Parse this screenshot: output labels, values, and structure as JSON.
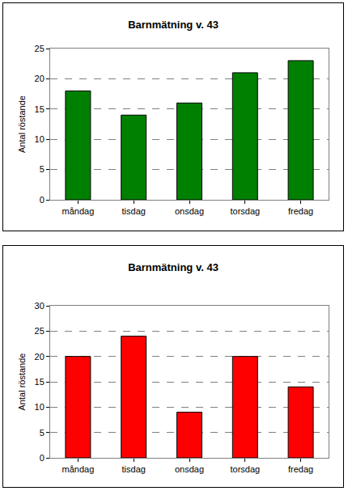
{
  "chart_data": [
    {
      "type": "bar",
      "title": "Barnmätning v. 43",
      "y_label": "Antal röstande",
      "categories": [
        "måndag",
        "tisdag",
        "onsdag",
        "torsdag",
        "fredag"
      ],
      "values": [
        18,
        14,
        16,
        21,
        23
      ],
      "color": "#008000",
      "ylim": [
        0,
        25
      ],
      "yticks": [
        0,
        5,
        10,
        15,
        20,
        25
      ],
      "grid": true
    },
    {
      "type": "bar",
      "title": "Barnmätning v. 43",
      "y_label": "Antal röstande",
      "categories": [
        "måndag",
        "tisdag",
        "onsdag",
        "torsdag",
        "fredag"
      ],
      "values": [
        20,
        24,
        9,
        20,
        14
      ],
      "color": "#ff0000",
      "ylim": [
        0,
        30
      ],
      "yticks": [
        0,
        5,
        10,
        15,
        20,
        25,
        30
      ],
      "grid": true
    }
  ]
}
